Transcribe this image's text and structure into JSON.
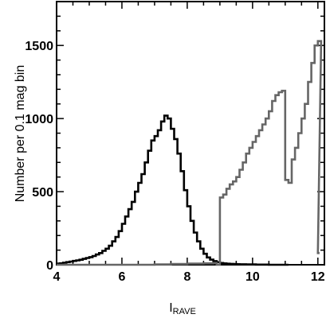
{
  "chart_data": {
    "type": "line",
    "step": true,
    "xlabel": "I",
    "xlabel_subscript": "RAVE",
    "ylabel": "Number per 0.1 mag bin",
    "xlim": [
      4,
      12.2
    ],
    "ylim": [
      0,
      1800
    ],
    "xticks": [
      4,
      6,
      8,
      10,
      12
    ],
    "yticks": [
      0,
      500,
      1000,
      1500
    ],
    "grid": false,
    "series": [
      {
        "color": "#000000",
        "x": [
          4.0,
          4.1,
          4.2,
          4.3,
          4.4,
          4.5,
          4.6,
          4.7,
          4.8,
          4.9,
          5.0,
          5.1,
          5.2,
          5.3,
          5.4,
          5.5,
          5.6,
          5.7,
          5.8,
          5.9,
          6.0,
          6.1,
          6.2,
          6.3,
          6.4,
          6.5,
          6.6,
          6.7,
          6.8,
          6.9,
          7.0,
          7.1,
          7.2,
          7.3,
          7.4,
          7.5,
          7.6,
          7.7,
          7.8,
          7.9,
          8.0,
          8.1,
          8.2,
          8.3,
          8.4,
          8.5,
          8.6,
          8.7,
          8.8,
          8.9,
          9.0,
          9.1,
          9.2,
          9.3,
          9.4,
          9.5,
          9.6,
          9.7,
          9.8,
          9.9,
          10.0,
          10.1,
          10.2,
          10.3,
          10.4,
          10.5,
          10.6,
          10.7,
          10.8,
          10.9,
          11.0
        ],
        "values": [
          8,
          10,
          14,
          18,
          22,
          26,
          30,
          34,
          40,
          46,
          52,
          60,
          70,
          80,
          95,
          110,
          130,
          160,
          190,
          230,
          280,
          330,
          380,
          430,
          500,
          560,
          620,
          700,
          780,
          850,
          880,
          920,
          980,
          1020,
          1000,
          930,
          860,
          760,
          640,
          510,
          400,
          300,
          220,
          160,
          110,
          75,
          50,
          35,
          25,
          18,
          12,
          9,
          7,
          6,
          5,
          4,
          3,
          3,
          2,
          2,
          2,
          1,
          1,
          1,
          1,
          0,
          0,
          0,
          0,
          0,
          0
        ]
      },
      {
        "color": "#666666",
        "x": [
          4.0,
          4.5,
          5.0,
          5.5,
          6.0,
          6.5,
          7.0,
          7.5,
          8.0,
          8.5,
          8.8,
          8.9,
          9.0,
          9.1,
          9.2,
          9.3,
          9.4,
          9.5,
          9.6,
          9.7,
          9.8,
          9.9,
          10.0,
          10.1,
          10.2,
          10.3,
          10.4,
          10.5,
          10.6,
          10.7,
          10.8,
          10.9,
          11.0,
          11.1,
          11.2,
          11.3,
          11.4,
          11.5,
          11.6,
          11.7,
          11.8,
          11.9,
          12.0
        ],
        "values": [
          0,
          0,
          0,
          0,
          0,
          0,
          2,
          5,
          8,
          10,
          12,
          0,
          460,
          480,
          520,
          550,
          570,
          600,
          650,
          700,
          760,
          800,
          840,
          880,
          920,
          960,
          1000,
          1050,
          1120,
          1160,
          1180,
          1190,
          580,
          560,
          720,
          800,
          900,
          1000,
          1100,
          1250,
          1380,
          1500,
          1530
        ]
      }
    ]
  }
}
